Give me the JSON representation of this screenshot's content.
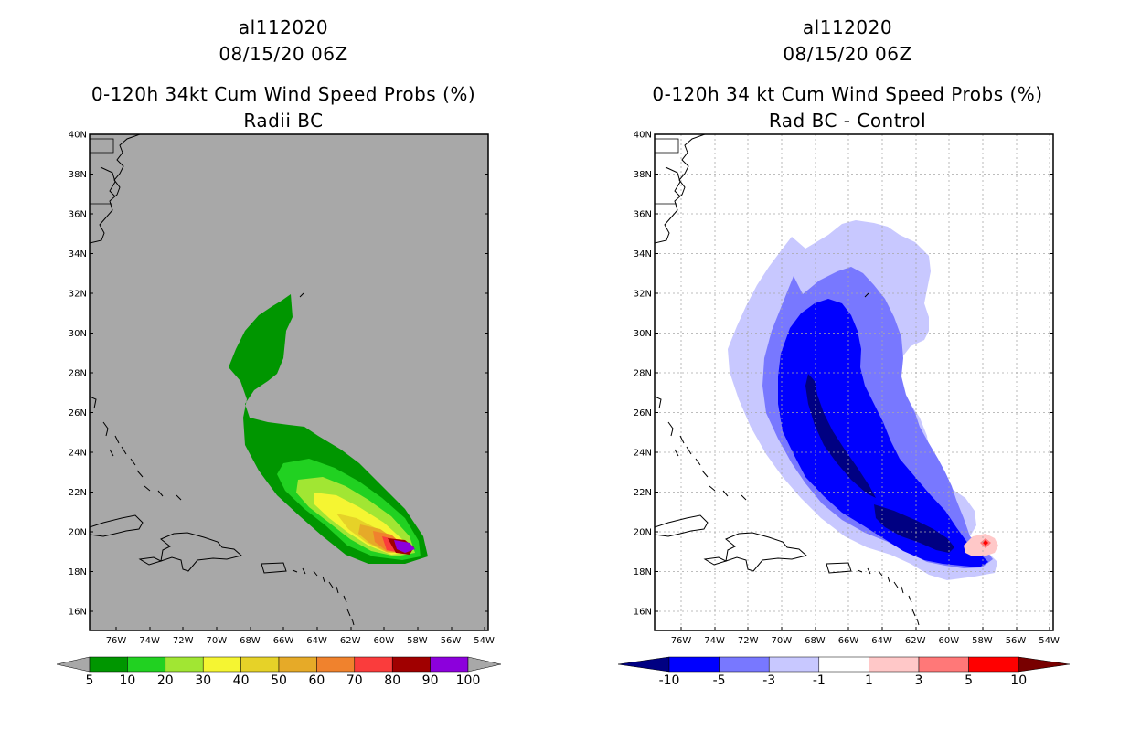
{
  "left_panel": {
    "storm_id": "al112020",
    "datetime": "08/15/20 06Z",
    "product": "0-120h 34kt Cum Wind Speed Probs (%)",
    "subtitle": "Radii BC",
    "colorbar": {
      "labels": [
        "5",
        "10",
        "20",
        "30",
        "40",
        "50",
        "60",
        "70",
        "80",
        "90",
        "100"
      ],
      "colors": [
        "#009600",
        "#21d121",
        "#a1e633",
        "#f5f532",
        "#e6d228",
        "#e6aa28",
        "#f0822d",
        "#fa3c3c",
        "#a00000",
        "#8c00dc"
      ]
    },
    "background": "#a8a8a8"
  },
  "right_panel": {
    "storm_id": "al112020",
    "datetime": "08/15/20 06Z",
    "product": "0-120h 34 kt Cum Wind Speed Probs (%)",
    "subtitle": "Rad BC - Control",
    "colorbar": {
      "labels": [
        "-10",
        "-5",
        "-3",
        "-1",
        "1",
        "3",
        "5",
        "10"
      ],
      "colors": [
        "#000082",
        "#0000ff",
        "#7878ff",
        "#c8c8ff",
        "#ffffff",
        "#ffc8c8",
        "#ff7878",
        "#ff0000"
      ],
      "end_low": "#000064",
      "end_high": "#780000"
    }
  },
  "axes": {
    "lat_labels": [
      "40N",
      "38N",
      "36N",
      "34N",
      "32N",
      "30N",
      "28N",
      "26N",
      "24N",
      "22N",
      "20N",
      "18N",
      "16N"
    ],
    "lon_labels": [
      "76W",
      "74W",
      "72W",
      "70W",
      "68W",
      "66W",
      "64W",
      "62W",
      "60W",
      "58W",
      "56W",
      "54W"
    ]
  }
}
